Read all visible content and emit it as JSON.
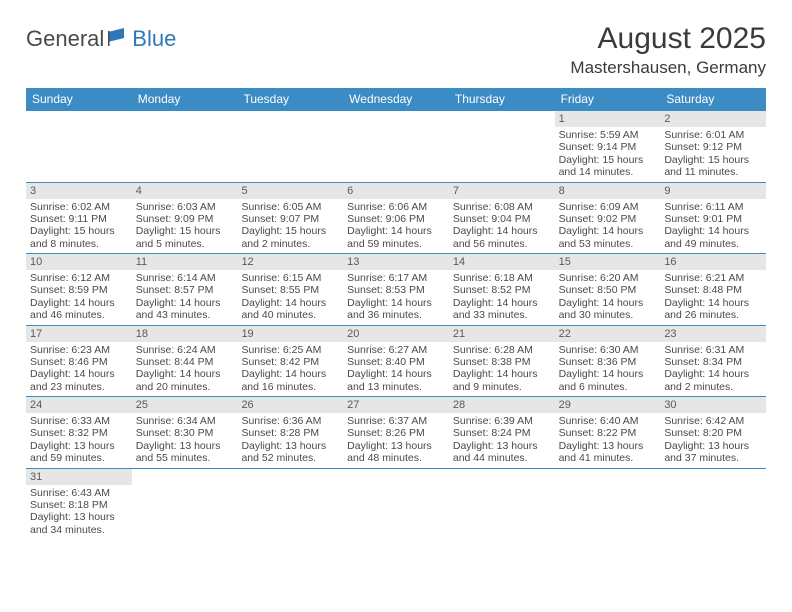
{
  "logo": {
    "general": "General",
    "blue": "Blue"
  },
  "title": "August 2025",
  "location": "Mastershausen, Germany",
  "colors": {
    "header_bg": "#3b8bc4",
    "header_text": "#ffffff",
    "daynum_bg": "#e6e6e6",
    "body_text": "#4a4a4a",
    "rule": "#3b8bc4",
    "logo_blue": "#2f78b7"
  },
  "day_names": [
    "Sunday",
    "Monday",
    "Tuesday",
    "Wednesday",
    "Thursday",
    "Friday",
    "Saturday"
  ],
  "weeks": [
    [
      {
        "blank": true
      },
      {
        "blank": true
      },
      {
        "blank": true
      },
      {
        "blank": true
      },
      {
        "blank": true
      },
      {
        "day": "1",
        "sunrise": "Sunrise: 5:59 AM",
        "sunset": "Sunset: 9:14 PM",
        "daylight1": "Daylight: 15 hours",
        "daylight2": "and 14 minutes."
      },
      {
        "day": "2",
        "sunrise": "Sunrise: 6:01 AM",
        "sunset": "Sunset: 9:12 PM",
        "daylight1": "Daylight: 15 hours",
        "daylight2": "and 11 minutes."
      }
    ],
    [
      {
        "day": "3",
        "sunrise": "Sunrise: 6:02 AM",
        "sunset": "Sunset: 9:11 PM",
        "daylight1": "Daylight: 15 hours",
        "daylight2": "and 8 minutes."
      },
      {
        "day": "4",
        "sunrise": "Sunrise: 6:03 AM",
        "sunset": "Sunset: 9:09 PM",
        "daylight1": "Daylight: 15 hours",
        "daylight2": "and 5 minutes."
      },
      {
        "day": "5",
        "sunrise": "Sunrise: 6:05 AM",
        "sunset": "Sunset: 9:07 PM",
        "daylight1": "Daylight: 15 hours",
        "daylight2": "and 2 minutes."
      },
      {
        "day": "6",
        "sunrise": "Sunrise: 6:06 AM",
        "sunset": "Sunset: 9:06 PM",
        "daylight1": "Daylight: 14 hours",
        "daylight2": "and 59 minutes."
      },
      {
        "day": "7",
        "sunrise": "Sunrise: 6:08 AM",
        "sunset": "Sunset: 9:04 PM",
        "daylight1": "Daylight: 14 hours",
        "daylight2": "and 56 minutes."
      },
      {
        "day": "8",
        "sunrise": "Sunrise: 6:09 AM",
        "sunset": "Sunset: 9:02 PM",
        "daylight1": "Daylight: 14 hours",
        "daylight2": "and 53 minutes."
      },
      {
        "day": "9",
        "sunrise": "Sunrise: 6:11 AM",
        "sunset": "Sunset: 9:01 PM",
        "daylight1": "Daylight: 14 hours",
        "daylight2": "and 49 minutes."
      }
    ],
    [
      {
        "day": "10",
        "sunrise": "Sunrise: 6:12 AM",
        "sunset": "Sunset: 8:59 PM",
        "daylight1": "Daylight: 14 hours",
        "daylight2": "and 46 minutes."
      },
      {
        "day": "11",
        "sunrise": "Sunrise: 6:14 AM",
        "sunset": "Sunset: 8:57 PM",
        "daylight1": "Daylight: 14 hours",
        "daylight2": "and 43 minutes."
      },
      {
        "day": "12",
        "sunrise": "Sunrise: 6:15 AM",
        "sunset": "Sunset: 8:55 PM",
        "daylight1": "Daylight: 14 hours",
        "daylight2": "and 40 minutes."
      },
      {
        "day": "13",
        "sunrise": "Sunrise: 6:17 AM",
        "sunset": "Sunset: 8:53 PM",
        "daylight1": "Daylight: 14 hours",
        "daylight2": "and 36 minutes."
      },
      {
        "day": "14",
        "sunrise": "Sunrise: 6:18 AM",
        "sunset": "Sunset: 8:52 PM",
        "daylight1": "Daylight: 14 hours",
        "daylight2": "and 33 minutes."
      },
      {
        "day": "15",
        "sunrise": "Sunrise: 6:20 AM",
        "sunset": "Sunset: 8:50 PM",
        "daylight1": "Daylight: 14 hours",
        "daylight2": "and 30 minutes."
      },
      {
        "day": "16",
        "sunrise": "Sunrise: 6:21 AM",
        "sunset": "Sunset: 8:48 PM",
        "daylight1": "Daylight: 14 hours",
        "daylight2": "and 26 minutes."
      }
    ],
    [
      {
        "day": "17",
        "sunrise": "Sunrise: 6:23 AM",
        "sunset": "Sunset: 8:46 PM",
        "daylight1": "Daylight: 14 hours",
        "daylight2": "and 23 minutes."
      },
      {
        "day": "18",
        "sunrise": "Sunrise: 6:24 AM",
        "sunset": "Sunset: 8:44 PM",
        "daylight1": "Daylight: 14 hours",
        "daylight2": "and 20 minutes."
      },
      {
        "day": "19",
        "sunrise": "Sunrise: 6:25 AM",
        "sunset": "Sunset: 8:42 PM",
        "daylight1": "Daylight: 14 hours",
        "daylight2": "and 16 minutes."
      },
      {
        "day": "20",
        "sunrise": "Sunrise: 6:27 AM",
        "sunset": "Sunset: 8:40 PM",
        "daylight1": "Daylight: 14 hours",
        "daylight2": "and 13 minutes."
      },
      {
        "day": "21",
        "sunrise": "Sunrise: 6:28 AM",
        "sunset": "Sunset: 8:38 PM",
        "daylight1": "Daylight: 14 hours",
        "daylight2": "and 9 minutes."
      },
      {
        "day": "22",
        "sunrise": "Sunrise: 6:30 AM",
        "sunset": "Sunset: 8:36 PM",
        "daylight1": "Daylight: 14 hours",
        "daylight2": "and 6 minutes."
      },
      {
        "day": "23",
        "sunrise": "Sunrise: 6:31 AM",
        "sunset": "Sunset: 8:34 PM",
        "daylight1": "Daylight: 14 hours",
        "daylight2": "and 2 minutes."
      }
    ],
    [
      {
        "day": "24",
        "sunrise": "Sunrise: 6:33 AM",
        "sunset": "Sunset: 8:32 PM",
        "daylight1": "Daylight: 13 hours",
        "daylight2": "and 59 minutes."
      },
      {
        "day": "25",
        "sunrise": "Sunrise: 6:34 AM",
        "sunset": "Sunset: 8:30 PM",
        "daylight1": "Daylight: 13 hours",
        "daylight2": "and 55 minutes."
      },
      {
        "day": "26",
        "sunrise": "Sunrise: 6:36 AM",
        "sunset": "Sunset: 8:28 PM",
        "daylight1": "Daylight: 13 hours",
        "daylight2": "and 52 minutes."
      },
      {
        "day": "27",
        "sunrise": "Sunrise: 6:37 AM",
        "sunset": "Sunset: 8:26 PM",
        "daylight1": "Daylight: 13 hours",
        "daylight2": "and 48 minutes."
      },
      {
        "day": "28",
        "sunrise": "Sunrise: 6:39 AM",
        "sunset": "Sunset: 8:24 PM",
        "daylight1": "Daylight: 13 hours",
        "daylight2": "and 44 minutes."
      },
      {
        "day": "29",
        "sunrise": "Sunrise: 6:40 AM",
        "sunset": "Sunset: 8:22 PM",
        "daylight1": "Daylight: 13 hours",
        "daylight2": "and 41 minutes."
      },
      {
        "day": "30",
        "sunrise": "Sunrise: 6:42 AM",
        "sunset": "Sunset: 8:20 PM",
        "daylight1": "Daylight: 13 hours",
        "daylight2": "and 37 minutes."
      }
    ],
    [
      {
        "day": "31",
        "sunrise": "Sunrise: 6:43 AM",
        "sunset": "Sunset: 8:18 PM",
        "daylight1": "Daylight: 13 hours",
        "daylight2": "and 34 minutes."
      },
      {
        "blank": true
      },
      {
        "blank": true
      },
      {
        "blank": true
      },
      {
        "blank": true
      },
      {
        "blank": true
      },
      {
        "blank": true
      }
    ]
  ]
}
